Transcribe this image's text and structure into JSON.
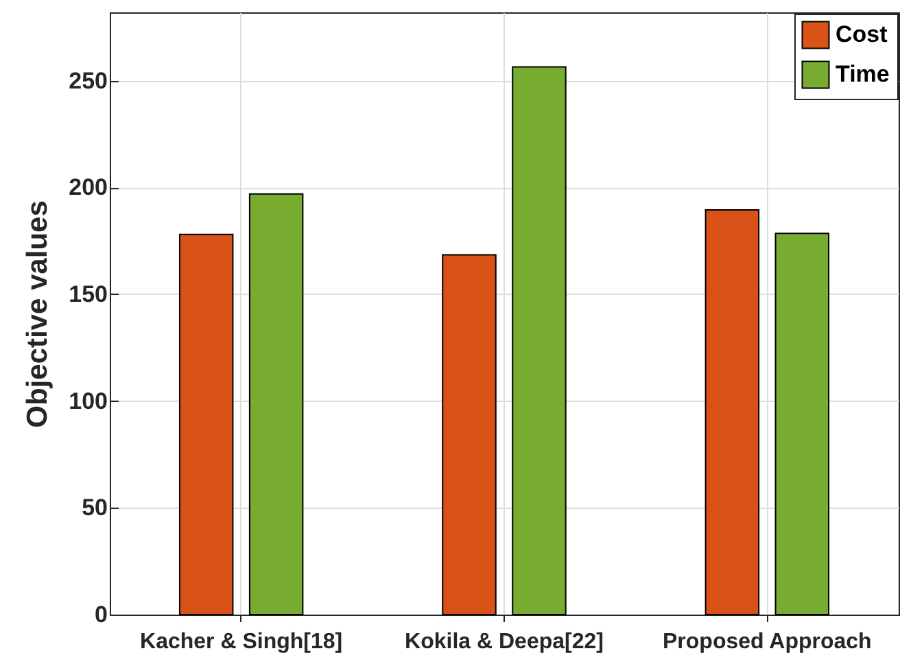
{
  "chart_data": {
    "type": "bar",
    "ylabel": "Objective values",
    "categories": [
      "Kacher & Singh[18]",
      "Kokila & Deepa[22]",
      "Proposed Approach"
    ],
    "series": [
      {
        "name": "Cost",
        "color": "#d95319",
        "values": [
          178,
          168.5,
          189.5
        ]
      },
      {
        "name": "Time",
        "color": "#77ac30",
        "values": [
          197,
          256.5,
          178.5
        ]
      }
    ],
    "ylim": [
      0,
      282
    ],
    "yticks": [
      0,
      50,
      100,
      150,
      200,
      250
    ],
    "grid": true,
    "legend": "top right"
  }
}
